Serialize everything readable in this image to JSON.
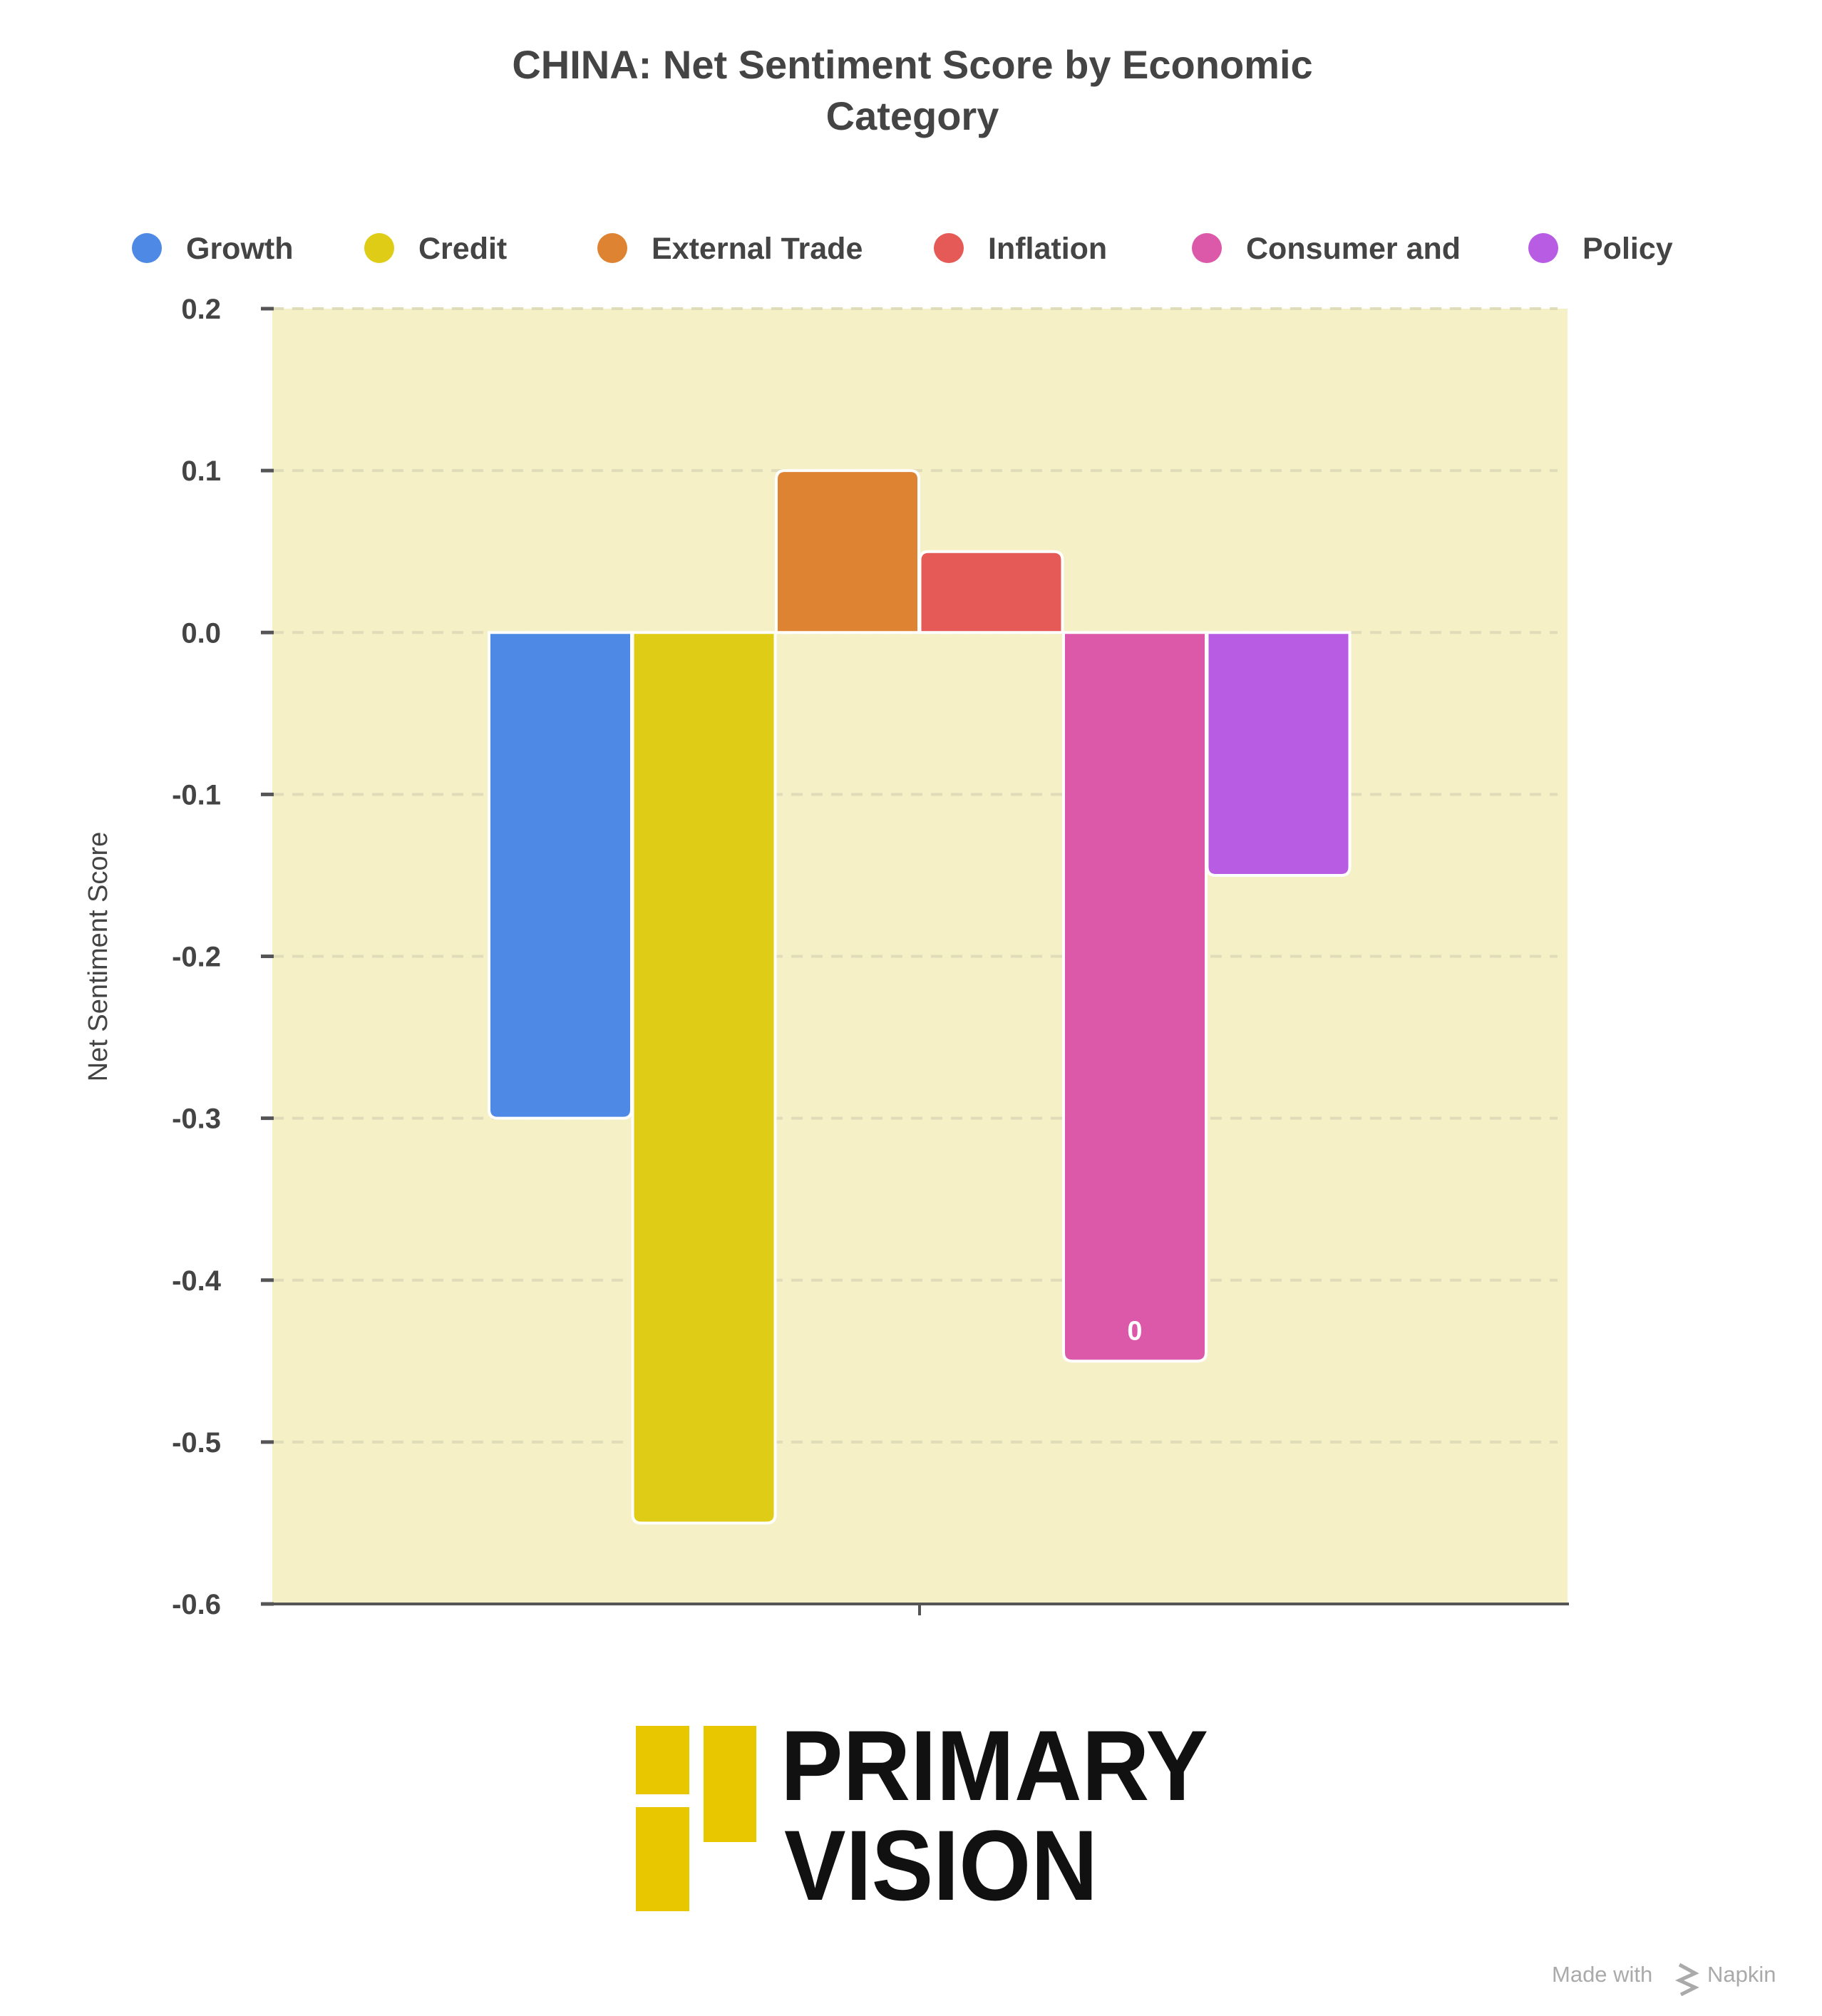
{
  "chart_data": {
    "type": "bar",
    "title_lines": [
      "CHINA: Net Sentiment Score by Economic",
      "Category"
    ],
    "ylabel": "Net Sentiment Score",
    "xlabel": "",
    "ylim": [
      -0.6,
      0.2
    ],
    "yticks": [
      "0.2",
      "0.1",
      "0.0",
      "-0.1",
      "-0.2",
      "-0.3",
      "-0.4",
      "-0.5",
      "-0.6"
    ],
    "ytick_values": [
      0.2,
      0.1,
      0.0,
      -0.1,
      -0.2,
      -0.3,
      -0.4,
      -0.5,
      -0.6
    ],
    "grid": true,
    "legend_position": "top",
    "plot_background": "#F5F0C5",
    "series": [
      {
        "name": "Growth",
        "value": -0.3,
        "color": "#4E89E6"
      },
      {
        "name": "Credit",
        "value": -0.55,
        "color": "#DFCC16"
      },
      {
        "name": "External Trade",
        "value": 0.1,
        "color": "#DD8332"
      },
      {
        "name": "Inflation",
        "value": 0.05,
        "color": "#E55A56"
      },
      {
        "name": "Consumer and",
        "value": -0.45,
        "color": "#DC58A8",
        "data_label": "0"
      },
      {
        "name": "Policy",
        "value": -0.15,
        "color": "#B85DE3"
      }
    ]
  },
  "logo": {
    "line1": "PRIMARY",
    "line2": "VISION",
    "color": "#E8C600"
  },
  "footer": {
    "made_with": "Made with",
    "brand": "Napkin"
  }
}
